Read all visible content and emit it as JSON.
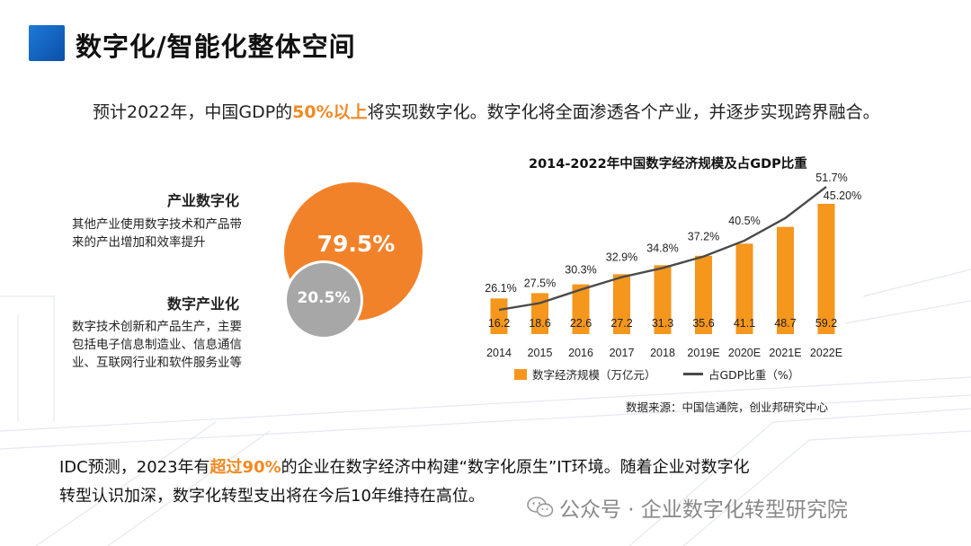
{
  "slide": {
    "title": "数字化/智能化整体空间",
    "intro_before": "预计2022年，中国GDP的",
    "intro_highlight": "50%以上",
    "intro_after": "将实现数字化。数字化将全面渗透各个产业，并逐步实现跨界融合。",
    "accent_color": "#f08a24"
  },
  "circles": {
    "industry_digitalization": {
      "title": "产业数字化",
      "desc_line1": "其他产业使用数字技术和产品带",
      "desc_line2": "来的产出增加和效率提升",
      "value": "79.5%",
      "color": "#f2822a"
    },
    "digital_industrialization": {
      "title": "数字产业化",
      "desc_line1": "数字技术创新和产品生产，主要",
      "desc_line2": "包括电子信息制造业、信息通信",
      "desc_line3": "业、互联网行业和软件服务业等",
      "value": "20.5%",
      "color": "#a7a7a7"
    }
  },
  "chart_data": {
    "type": "bar",
    "title": "2014-2022年中国数字经济规模及占GDP比重",
    "categories": [
      "2014",
      "2015",
      "2016",
      "2017",
      "2018",
      "2019E",
      "2020E",
      "2021E",
      "2022E"
    ],
    "series": [
      {
        "name": "数字经济规模（万亿元）",
        "type": "bar",
        "color": "#f5961d",
        "values": [
          16.2,
          18.6,
          22.6,
          27.2,
          31.3,
          35.6,
          41.1,
          48.7,
          59.2
        ],
        "labels": [
          "16.2",
          "18.6",
          "22.6",
          "27.2",
          "31.3",
          "35.6",
          "41.1",
          "48.7",
          "59.2"
        ]
      },
      {
        "name": "占GDP比重（%）",
        "type": "line",
        "color": "#4a4a4a",
        "values": [
          26.1,
          27.5,
          30.3,
          32.9,
          34.8,
          37.2,
          40.5,
          45.2,
          51.7
        ],
        "labels": [
          "26.1%",
          "27.5%",
          "30.3%",
          "32.9%",
          "34.8%",
          "37.2%",
          "40.5%",
          "45.20%",
          "51.7%"
        ]
      }
    ],
    "legend_position": "bottom",
    "grid": false,
    "source": "数据来源：中国信通院，创业邦研究中心"
  },
  "bottom": {
    "line1_before": "IDC预测，2023年有",
    "line1_highlight": "超过90%",
    "line1_after": "的企业在数字经济中构建“数字化原生”IT环境。随着企业对数字化",
    "line2": "转型认识加深，数字化转型支出将在今后10年维持在高位。"
  },
  "watermark": {
    "icon": "wechat-icon",
    "text": "公众号 · 企业数字化转型研究院"
  }
}
